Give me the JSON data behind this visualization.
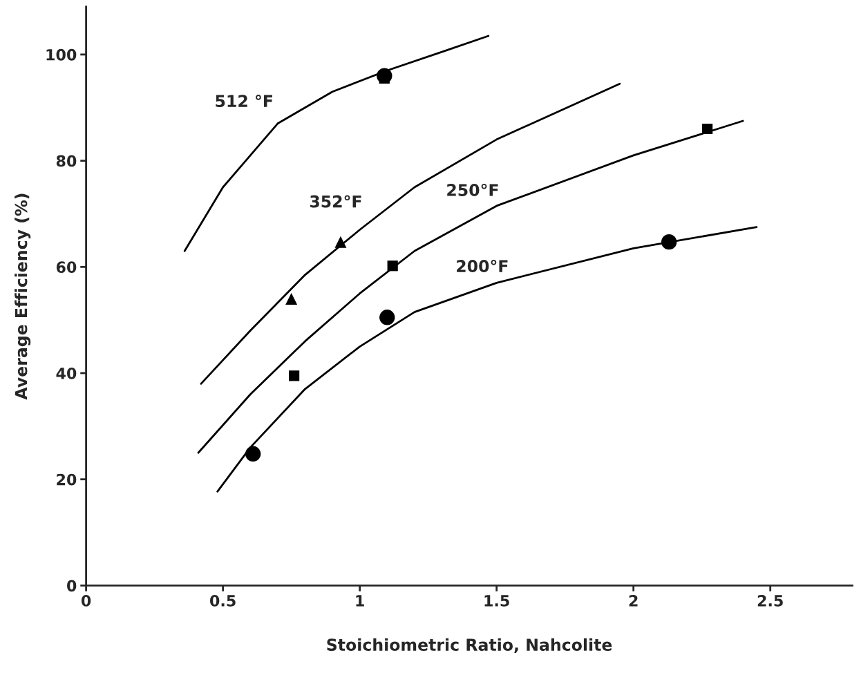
{
  "chart_data": {
    "type": "line",
    "xlabel": "Stoichiometric Ratio, Nahcolite",
    "ylabel": "Average Efficiency (%)",
    "xlim": [
      0,
      2.8
    ],
    "ylim": [
      0,
      109
    ],
    "xticks": [
      0,
      0.5,
      1,
      1.5,
      2,
      2.5
    ],
    "yticks": [
      0,
      20,
      40,
      60,
      80,
      100
    ],
    "grid": false,
    "legend": false,
    "series": [
      {
        "type": "line",
        "name": "512 °F",
        "color": "#000000",
        "marker": "none",
        "line_style": "solid",
        "x": [
          0.36,
          0.5,
          0.7,
          0.9,
          1.1,
          1.3,
          1.47
        ],
        "values": [
          63,
          75,
          87,
          93,
          97,
          100.5,
          103.5
        ]
      },
      {
        "type": "line",
        "name": "352°F",
        "color": "#000000",
        "marker": "none",
        "line_style": "solid",
        "x": [
          0.42,
          0.6,
          0.8,
          1.0,
          1.2,
          1.5,
          1.95
        ],
        "values": [
          38,
          48,
          58.5,
          67,
          75,
          84,
          94.5
        ]
      },
      {
        "type": "line",
        "name": "250°F",
        "color": "#000000",
        "marker": "none",
        "line_style": "solid",
        "x": [
          0.41,
          0.6,
          0.8,
          1.0,
          1.2,
          1.5,
          2.0,
          2.4
        ],
        "values": [
          25,
          36,
          46,
          55,
          63,
          71.5,
          81,
          87.5
        ]
      },
      {
        "type": "line",
        "name": "200°F",
        "color": "#000000",
        "marker": "none",
        "line_style": "solid",
        "x": [
          0.48,
          0.6,
          0.8,
          1.0,
          1.2,
          1.5,
          2.0,
          2.45
        ],
        "values": [
          17.7,
          26,
          37,
          45,
          51.5,
          57,
          63.5,
          67.5
        ]
      },
      {
        "type": "scatter",
        "color": "#000000",
        "marker": "circle",
        "x": [
          1.09,
          0.61,
          1.1,
          2.13
        ],
        "values": [
          96,
          24.8,
          50.5,
          64.7
        ]
      },
      {
        "type": "scatter",
        "color": "#000000",
        "marker": "square",
        "x": [
          1.09,
          0.76,
          1.12,
          2.27
        ],
        "values": [
          95.5,
          39.5,
          60.2,
          86
        ]
      },
      {
        "type": "scatter",
        "color": "#000000",
        "marker": "triangle",
        "x": [
          0.75,
          0.93
        ],
        "values": [
          54,
          64.7
        ]
      }
    ]
  }
}
